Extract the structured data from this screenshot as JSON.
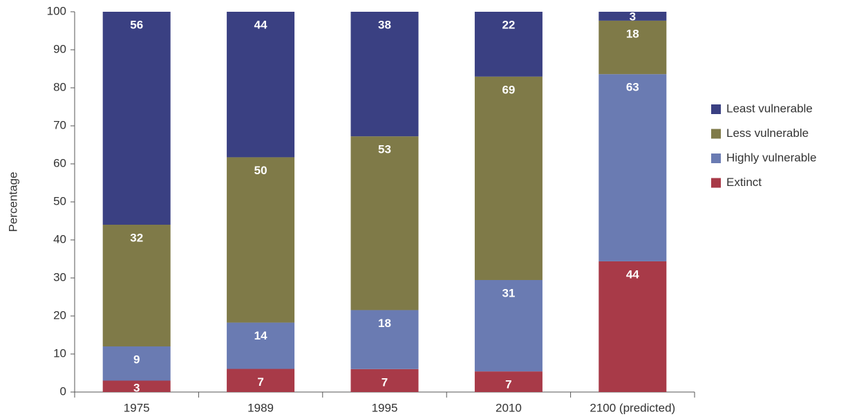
{
  "chart_data": {
    "type": "bar",
    "stacking": "percent",
    "y_label": "Percentage",
    "categories": [
      "1975",
      "1989",
      "1995",
      "2010",
      "2100 (predicted)"
    ],
    "series": [
      {
        "name": "Extinct",
        "color": "#a83a48",
        "values": [
          3,
          7,
          7,
          7,
          44
        ]
      },
      {
        "name": "Highly vulnerable",
        "color": "#6a7bb2",
        "values": [
          9,
          14,
          18,
          31,
          63
        ]
      },
      {
        "name": "Less vulnerable",
        "color": "#7f7a48",
        "values": [
          32,
          50,
          53,
          69,
          18
        ]
      },
      {
        "name": "Least vulnerable",
        "color": "#3a4082",
        "values": [
          56,
          44,
          38,
          22,
          3
        ]
      }
    ],
    "ylim": [
      0,
      100
    ],
    "yticks": [
      0,
      10,
      20,
      30,
      40,
      50,
      60,
      70,
      80,
      90,
      100
    ],
    "legend": "right"
  }
}
